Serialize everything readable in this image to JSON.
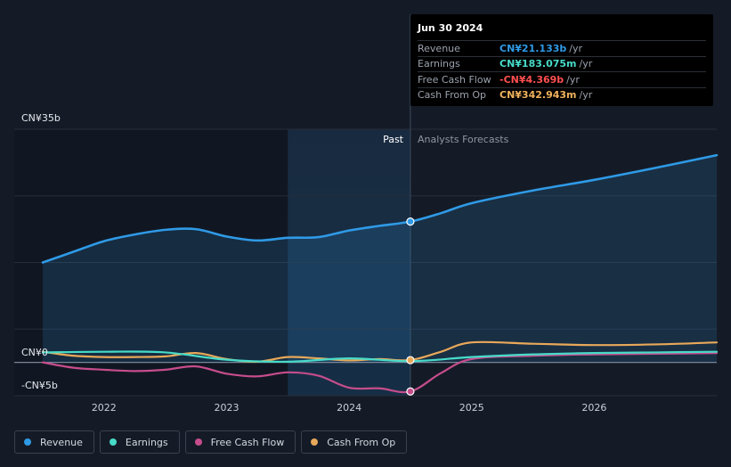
{
  "tooltip": {
    "date": "Jun 30 2024",
    "rows": [
      {
        "name": "Revenue",
        "value": "CN¥21.133b",
        "unit": "/yr",
        "color": "#2f9ae6"
      },
      {
        "name": "Earnings",
        "value": "CN¥183.075m",
        "unit": "/yr",
        "color": "#47dbc9"
      },
      {
        "name": "Free Cash Flow",
        "value": "-CN¥4.369b",
        "unit": "/yr",
        "color": "#ff4f4f"
      },
      {
        "name": "Cash From Op",
        "value": "CN¥342.943m",
        "unit": "/yr",
        "color": "#f0b25c"
      }
    ]
  },
  "legend": [
    {
      "label": "Revenue",
      "color": "#2f9ae6"
    },
    {
      "label": "Earnings",
      "color": "#47dbc9"
    },
    {
      "label": "Free Cash Flow",
      "color": "#c64d8c"
    },
    {
      "label": "Cash From Op",
      "color": "#e8a85a"
    }
  ],
  "chart_data": {
    "type": "line",
    "title": "",
    "xlabel": "",
    "ylabel": "",
    "y_axis_labels": [
      "CN¥35b",
      "CN¥0",
      "-CN¥5b"
    ],
    "ylim": [
      -5,
      35
    ],
    "xlim": [
      2021.5,
      2027.0
    ],
    "x_ticks": [
      {
        "label": "2022",
        "value": 2022
      },
      {
        "label": "2023",
        "value": 2023
      },
      {
        "label": "2024",
        "value": 2024
      },
      {
        "label": "2025",
        "value": 2025
      },
      {
        "label": "2026",
        "value": 2026
      }
    ],
    "past_label": "Past",
    "forecast_label": "Analysts Forecasts",
    "past_end": 2024.5,
    "highlight_start": 2023.5,
    "series": [
      {
        "name": "Revenue",
        "color": "#2f9ae6",
        "fill": true,
        "x": [
          2021.5,
          2021.75,
          2022.0,
          2022.25,
          2022.5,
          2022.75,
          2023.0,
          2023.25,
          2023.5,
          2023.75,
          2024.0,
          2024.25,
          2024.5,
          2024.75,
          2025.0,
          2025.5,
          2026.0,
          2026.5,
          2027.0
        ],
        "y": [
          15.0,
          16.6,
          18.2,
          19.2,
          19.9,
          20.0,
          18.9,
          18.3,
          18.7,
          18.8,
          19.8,
          20.5,
          21.133,
          22.4,
          23.9,
          25.8,
          27.4,
          29.2,
          31.1
        ]
      },
      {
        "name": "Earnings",
        "color": "#47dbc9",
        "x": [
          2021.5,
          2022.0,
          2022.5,
          2023.0,
          2023.5,
          2024.0,
          2024.5,
          2025.0,
          2025.5,
          2026.0,
          2026.5,
          2027.0
        ],
        "y": [
          1.5,
          1.6,
          1.5,
          0.4,
          0.1,
          0.6,
          0.183,
          0.8,
          1.2,
          1.4,
          1.5,
          1.6
        ]
      },
      {
        "name": "Free Cash Flow",
        "color": "#c64d8c",
        "x": [
          2021.5,
          2021.75,
          2022.0,
          2022.25,
          2022.5,
          2022.75,
          2023.0,
          2023.25,
          2023.5,
          2023.75,
          2024.0,
          2024.25,
          2024.5,
          2024.75,
          2025.0,
          2025.5,
          2026.0,
          2026.5,
          2027.0
        ],
        "y": [
          0.0,
          -0.8,
          -1.1,
          -1.3,
          -1.1,
          -0.6,
          -1.7,
          -2.1,
          -1.5,
          -2.0,
          -3.8,
          -3.9,
          -4.369,
          -1.6,
          0.5,
          1.0,
          1.2,
          1.3,
          1.4
        ]
      },
      {
        "name": "Cash From Op",
        "color": "#e8a85a",
        "x": [
          2021.5,
          2021.75,
          2022.0,
          2022.25,
          2022.5,
          2022.75,
          2023.0,
          2023.25,
          2023.5,
          2023.75,
          2024.0,
          2024.25,
          2024.5,
          2024.75,
          2025.0,
          2025.5,
          2026.0,
          2026.5,
          2027.0
        ],
        "y": [
          1.6,
          1.0,
          0.8,
          0.8,
          0.9,
          1.4,
          0.5,
          0.1,
          0.8,
          0.6,
          0.3,
          0.5,
          0.343,
          1.6,
          3.0,
          2.8,
          2.6,
          2.7,
          3.0
        ]
      }
    ],
    "markers": [
      {
        "series": "Revenue",
        "x": 2024.5,
        "y": 21.133
      },
      {
        "series": "Cash From Op",
        "x": 2024.5,
        "y": 0.343
      },
      {
        "series": "Free Cash Flow",
        "x": 2024.5,
        "y": -4.369
      }
    ]
  }
}
